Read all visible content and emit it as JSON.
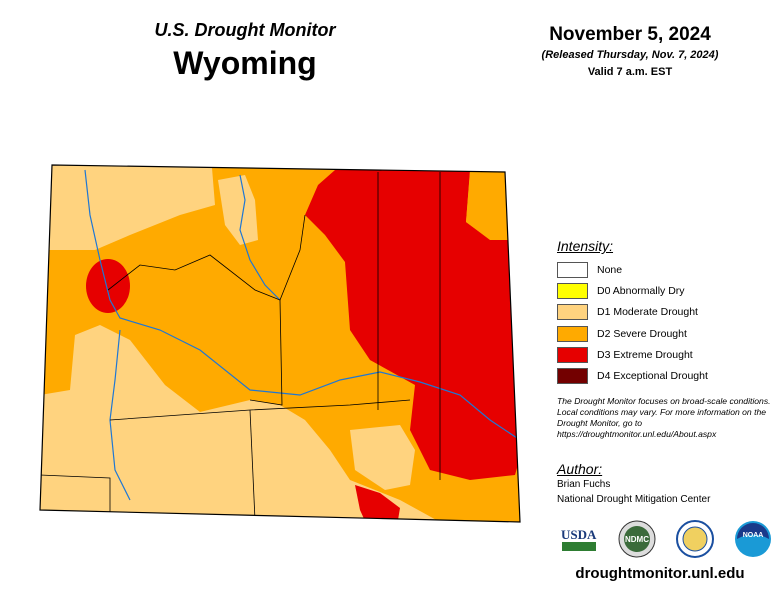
{
  "title": "U.S. Drought Monitor",
  "state": "Wyoming",
  "date": "November 5, 2024",
  "released": "(Released Thursday, Nov. 7, 2024)",
  "valid": "Valid 7 a.m. EST",
  "legend": {
    "heading": "Intensity:",
    "items": [
      {
        "label": "None",
        "color": "#FFFFFF"
      },
      {
        "label": "D0 Abnormally Dry",
        "color": "#FFFF00"
      },
      {
        "label": "D1 Moderate Drought",
        "color": "#FFD37F"
      },
      {
        "label": "D2 Severe Drought",
        "color": "#FFAA00"
      },
      {
        "label": "D3 Extreme Drought",
        "color": "#E60000"
      },
      {
        "label": "D4 Exceptional Drought",
        "color": "#730000"
      }
    ]
  },
  "note": "The Drought Monitor focuses on broad-scale conditions. Local conditions may vary. For more information on the Drought Monitor, go to https://droughtmonitor.unl.edu/About.aspx",
  "author": {
    "heading": "Author:",
    "name": "Brian Fuchs",
    "org": "National Drought Mitigation Center"
  },
  "logos": [
    "USDA",
    "NDMC",
    "NOAA"
  ],
  "url": "droughtmonitor.unl.edu"
}
